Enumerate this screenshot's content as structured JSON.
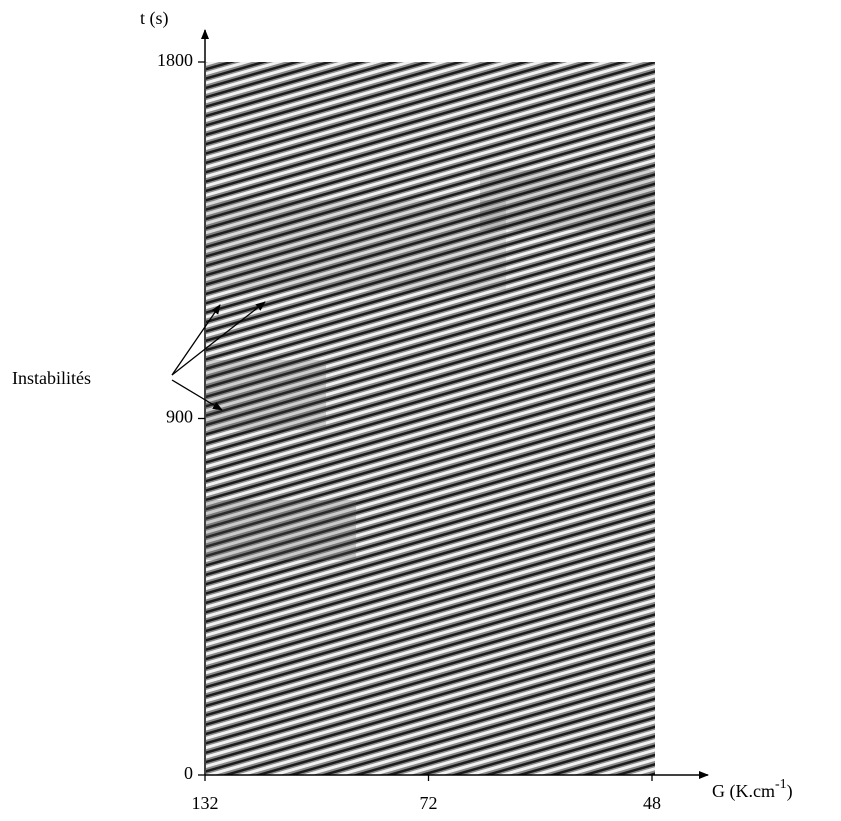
{
  "chart_data": {
    "type": "spatiotemporal",
    "y_label": "t (s)",
    "x_label_parts": [
      "G (K.cm",
      "-1",
      ")"
    ],
    "categories": [
      "132",
      "72",
      "48"
    ],
    "ylim": [
      0,
      1800
    ],
    "yticks": [
      0,
      900,
      1800
    ],
    "annotation": "Instabilités"
  }
}
